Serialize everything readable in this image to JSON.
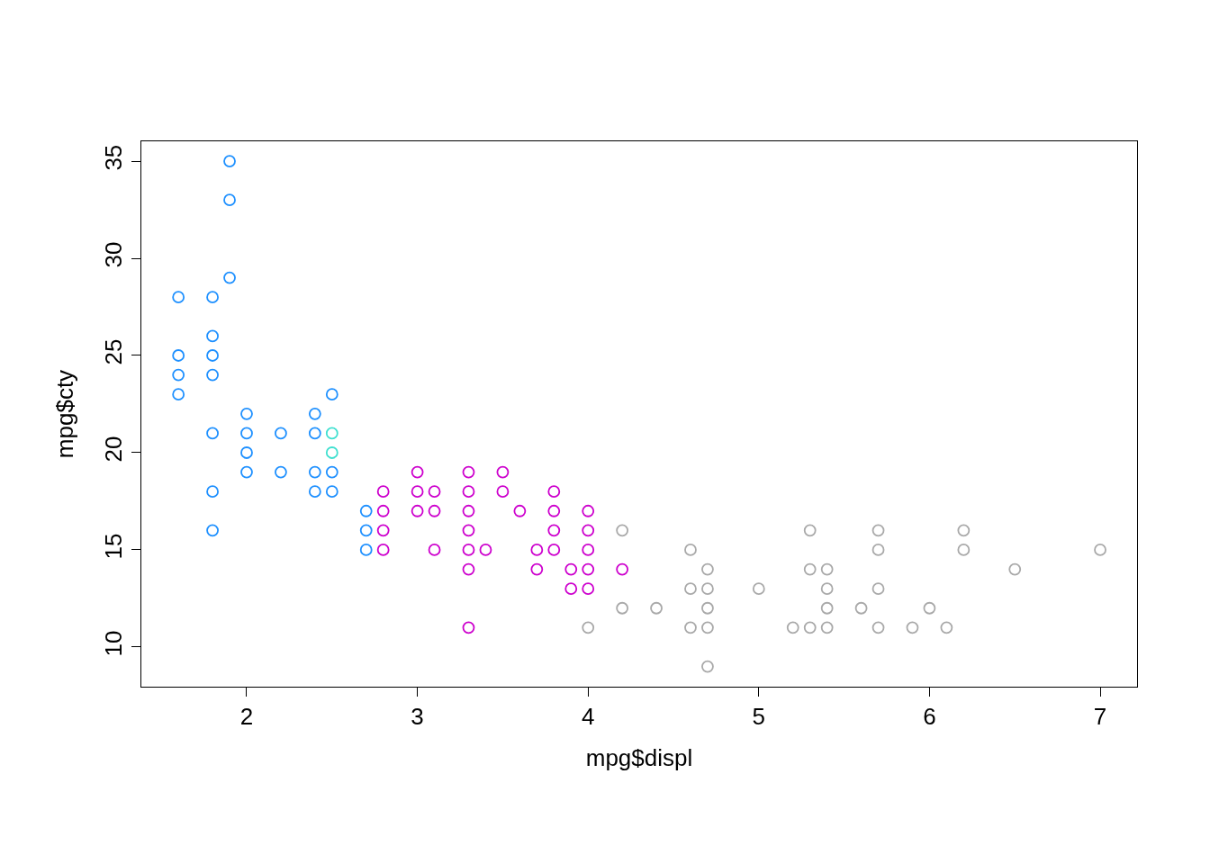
{
  "chart_data": {
    "type": "scatter",
    "xlabel": "mpg$displ",
    "ylabel": "mpg$cty",
    "xlim": [
      1.383,
      7.216
    ],
    "ylim": [
      7.96,
      36.02
    ],
    "xticks": [
      2,
      3,
      4,
      5,
      6,
      7
    ],
    "yticks": [
      10,
      15,
      20,
      25,
      30,
      35
    ],
    "grid": false,
    "marker": "circle",
    "series": [
      {
        "color": "#1e90ff",
        "x": [
          1.6,
          1.6,
          1.6,
          1.6,
          1.8,
          1.8,
          1.8,
          1.8,
          1.8,
          1.8,
          1.8,
          1.9,
          1.9,
          1.9,
          2.0,
          2.0,
          2.0,
          2.0,
          2.2,
          2.2,
          2.4,
          2.4,
          2.4,
          2.4,
          2.5,
          2.5,
          2.5,
          2.7,
          2.7,
          2.7
        ],
        "values": [
          28,
          25,
          24,
          23,
          28,
          26,
          25,
          24,
          21,
          18,
          16,
          35,
          33,
          29,
          22,
          21,
          20,
          19,
          21,
          19,
          22,
          21,
          19,
          18,
          23,
          19,
          18,
          17,
          16,
          15
        ]
      },
      {
        "color": "#40e0d0",
        "x": [
          2.5,
          2.5
        ],
        "values": [
          21,
          20
        ]
      },
      {
        "color": "#cd00cd",
        "x": [
          2.8,
          2.8,
          2.8,
          2.8,
          3.0,
          3.0,
          3.0,
          3.1,
          3.1,
          3.1,
          3.3,
          3.3,
          3.3,
          3.3,
          3.3,
          3.3,
          3.3,
          3.4,
          3.5,
          3.5,
          3.6,
          3.7,
          3.7,
          3.8,
          3.8,
          3.8,
          3.8,
          3.9,
          3.9,
          4.0,
          4.0,
          4.0,
          4.0,
          4.0,
          4.2
        ],
        "values": [
          18,
          17,
          16,
          15,
          19,
          18,
          17,
          18,
          17,
          15,
          19,
          18,
          17,
          16,
          15,
          14,
          11,
          15,
          19,
          18,
          17,
          15,
          14,
          18,
          17,
          16,
          15,
          14,
          13,
          17,
          16,
          15,
          14,
          13,
          14
        ]
      },
      {
        "color": "#a9a9a9",
        "x": [
          4.0,
          4.2,
          4.2,
          4.4,
          4.6,
          4.6,
          4.6,
          4.7,
          4.7,
          4.7,
          4.7,
          4.7,
          5.0,
          5.2,
          5.3,
          5.3,
          5.3,
          5.4,
          5.4,
          5.4,
          5.4,
          5.6,
          5.7,
          5.7,
          5.7,
          5.7,
          5.9,
          6.0,
          6.1,
          6.2,
          6.2,
          6.5,
          7.0
        ],
        "values": [
          11,
          16,
          12,
          12,
          15,
          13,
          11,
          14,
          13,
          12,
          11,
          9,
          13,
          11,
          16,
          14,
          11,
          14,
          13,
          12,
          11,
          12,
          16,
          15,
          13,
          11,
          11,
          12,
          11,
          16,
          15,
          14,
          15
        ]
      }
    ]
  }
}
